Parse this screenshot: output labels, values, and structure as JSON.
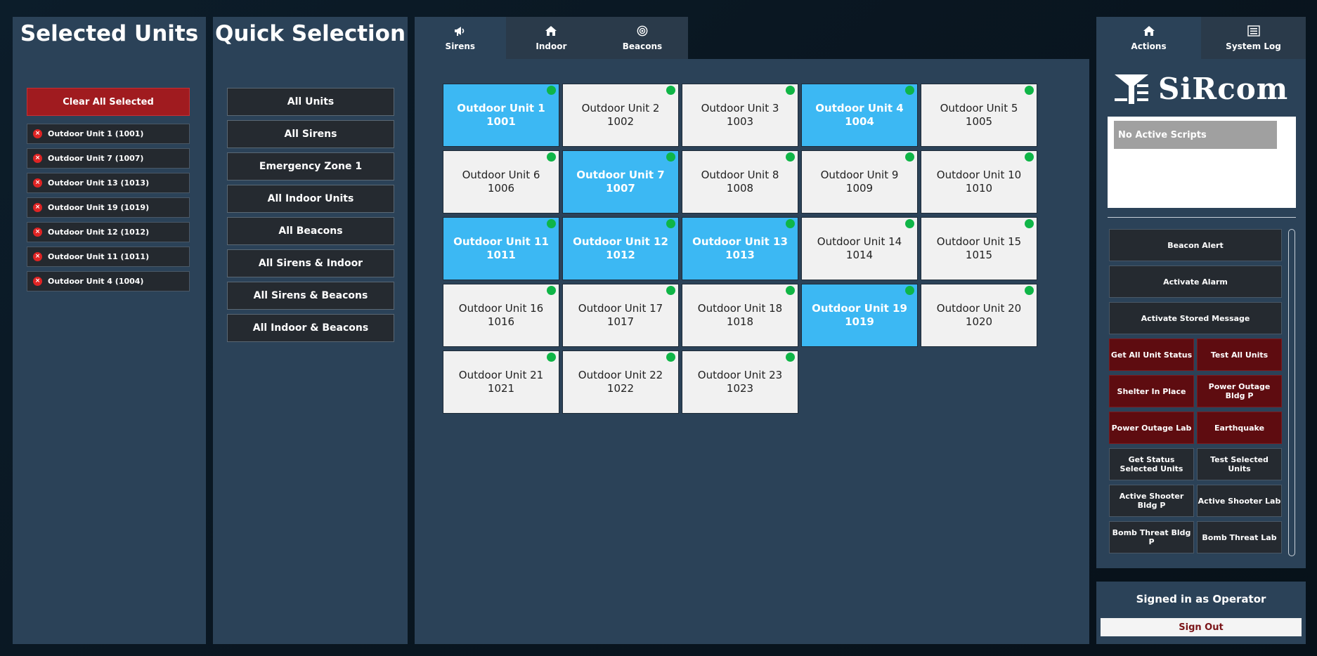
{
  "selected_units": {
    "title": "Selected Units",
    "clear_label": "Clear All Selected",
    "items": [
      "Outdoor Unit 1 (1001)",
      "Outdoor Unit 7 (1007)",
      "Outdoor Unit 13 (1013)",
      "Outdoor Unit 19 (1019)",
      "Outdoor Unit 12 (1012)",
      "Outdoor Unit 11 (1011)",
      "Outdoor Unit 4 (1004)"
    ]
  },
  "quick_selection": {
    "title": "Quick Selection",
    "items": [
      "All Units",
      "All Sirens",
      "Emergency Zone 1",
      "All Indoor Units",
      "All Beacons",
      "All Sirens & Indoor",
      "All Sirens & Beacons",
      "All Indoor & Beacons"
    ]
  },
  "center_tabs": [
    {
      "label": "Sirens",
      "icon": "megaphone-icon",
      "active": true
    },
    {
      "label": "Indoor",
      "icon": "home-icon",
      "active": false
    },
    {
      "label": "Beacons",
      "icon": "target-icon",
      "active": false
    }
  ],
  "units": [
    {
      "name": "Outdoor Unit 1",
      "id": "1001",
      "selected": true
    },
    {
      "name": "Outdoor Unit 2",
      "id": "1002",
      "selected": false
    },
    {
      "name": "Outdoor Unit 3",
      "id": "1003",
      "selected": false
    },
    {
      "name": "Outdoor Unit 4",
      "id": "1004",
      "selected": true
    },
    {
      "name": "Outdoor Unit 5",
      "id": "1005",
      "selected": false
    },
    {
      "name": "Outdoor Unit 6",
      "id": "1006",
      "selected": false
    },
    {
      "name": "Outdoor Unit 7",
      "id": "1007",
      "selected": true
    },
    {
      "name": "Outdoor Unit 8",
      "id": "1008",
      "selected": false
    },
    {
      "name": "Outdoor Unit 9",
      "id": "1009",
      "selected": false
    },
    {
      "name": "Outdoor Unit 10",
      "id": "1010",
      "selected": false
    },
    {
      "name": "Outdoor Unit 11",
      "id": "1011",
      "selected": true
    },
    {
      "name": "Outdoor Unit 12",
      "id": "1012",
      "selected": true
    },
    {
      "name": "Outdoor Unit 13",
      "id": "1013",
      "selected": true
    },
    {
      "name": "Outdoor Unit 14",
      "id": "1014",
      "selected": false
    },
    {
      "name": "Outdoor Unit 15",
      "id": "1015",
      "selected": false
    },
    {
      "name": "Outdoor Unit 16",
      "id": "1016",
      "selected": false
    },
    {
      "name": "Outdoor Unit 17",
      "id": "1017",
      "selected": false
    },
    {
      "name": "Outdoor Unit 18",
      "id": "1018",
      "selected": false
    },
    {
      "name": "Outdoor Unit 19",
      "id": "1019",
      "selected": true
    },
    {
      "name": "Outdoor Unit 20",
      "id": "1020",
      "selected": false
    },
    {
      "name": "Outdoor Unit 21",
      "id": "1021",
      "selected": false
    },
    {
      "name": "Outdoor Unit 22",
      "id": "1022",
      "selected": false
    },
    {
      "name": "Outdoor Unit 23",
      "id": "1023",
      "selected": false
    }
  ],
  "status_color": "#0fb547",
  "selected_color": "#3cb8f3",
  "right_tabs": [
    {
      "label": "Actions",
      "icon": "home-icon",
      "active": true
    },
    {
      "label": "System Log",
      "icon": "list-icon",
      "active": false
    }
  ],
  "logo_text": "SiRcom",
  "scripts_message": "No Active Scripts",
  "actions": {
    "full": [
      "Beacon Alert",
      "Activate Alarm",
      "Activate Stored Message"
    ],
    "pairs": [
      [
        {
          "label": "Get All Unit Status",
          "red": true
        },
        {
          "label": "Test All Units",
          "red": true
        }
      ],
      [
        {
          "label": "Shelter In Place",
          "red": true
        },
        {
          "label": "Power Outage Bldg P",
          "red": true
        }
      ],
      [
        {
          "label": "Power Outage Lab",
          "red": true
        },
        {
          "label": "Earthquake",
          "red": true
        }
      ],
      [
        {
          "label": "Get Status Selected Units",
          "red": false
        },
        {
          "label": "Test Selected Units",
          "red": false
        }
      ],
      [
        {
          "label": "Active Shooter Bldg P",
          "red": false
        },
        {
          "label": "Active Shooter Lab",
          "red": false
        }
      ],
      [
        {
          "label": "Bomb Threat Bldg P",
          "red": false
        },
        {
          "label": "Bomb Threat Lab",
          "red": false
        }
      ]
    ]
  },
  "signin": {
    "text": "Signed in as Operator",
    "signout_label": "Sign Out"
  }
}
